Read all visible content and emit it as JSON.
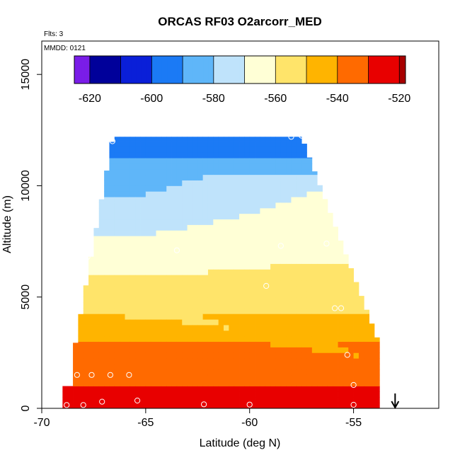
{
  "chart_data": {
    "type": "heatmap",
    "title": "ORCAS RF03 O2arcorr_MED",
    "annotations": {
      "flights": "Flts: 3",
      "date": "MMDD: 0121"
    },
    "xlabel": "Latitude (deg N)",
    "ylabel": "Altitude (m)",
    "xlim": [
      -70,
      -50.9
    ],
    "ylim": [
      0,
      16500
    ],
    "xticks": [
      -70,
      -65,
      -60,
      -55
    ],
    "yticks": [
      0,
      5000,
      10000,
      15000
    ],
    "colorbar": {
      "ticks": [
        -620,
        -600,
        -580,
        -560,
        -540,
        -520
      ],
      "range": [
        -625,
        -518
      ],
      "bins": [
        -625,
        -620,
        -610,
        -600,
        -590,
        -580,
        -570,
        -560,
        -550,
        -540,
        -530,
        -520,
        -518
      ],
      "colors": [
        "#7a1de8",
        "#00009a",
        "#0a1fd8",
        "#1b7af5",
        "#5fb6f9",
        "#bfe3fb",
        "#ffffd6",
        "#ffe46a",
        "#ffb400",
        "#ff6a00",
        "#e80000",
        "#a80000"
      ]
    },
    "arrow_latitude": -53.0,
    "sample_points": [
      {
        "lat": -66.6,
        "alt": 12000
      },
      {
        "lat": -58.0,
        "alt": 12200
      },
      {
        "lat": -57.5,
        "alt": 12250
      },
      {
        "lat": -67.8,
        "alt": 6800
      },
      {
        "lat": -63.5,
        "alt": 7100
      },
      {
        "lat": -58.5,
        "alt": 7300
      },
      {
        "lat": -56.3,
        "alt": 7400
      },
      {
        "lat": -59.2,
        "alt": 5500
      },
      {
        "lat": -68.3,
        "alt": 4400
      },
      {
        "lat": -55.9,
        "alt": 4500
      },
      {
        "lat": -55.6,
        "alt": 4500
      },
      {
        "lat": -55.3,
        "alt": 2400
      },
      {
        "lat": -68.3,
        "alt": 1500
      },
      {
        "lat": -67.6,
        "alt": 1500
      },
      {
        "lat": -66.7,
        "alt": 1500
      },
      {
        "lat": -65.8,
        "alt": 1500
      },
      {
        "lat": -55.0,
        "alt": 1050
      },
      {
        "lat": -67.1,
        "alt": 300
      },
      {
        "lat": -65.4,
        "alt": 350
      },
      {
        "lat": -68.0,
        "alt": 150
      },
      {
        "lat": -62.2,
        "alt": 180
      },
      {
        "lat": -60.0,
        "alt": 170
      },
      {
        "lat": -55.0,
        "alt": 160
      },
      {
        "lat": -68.8,
        "alt": 150
      }
    ]
  }
}
